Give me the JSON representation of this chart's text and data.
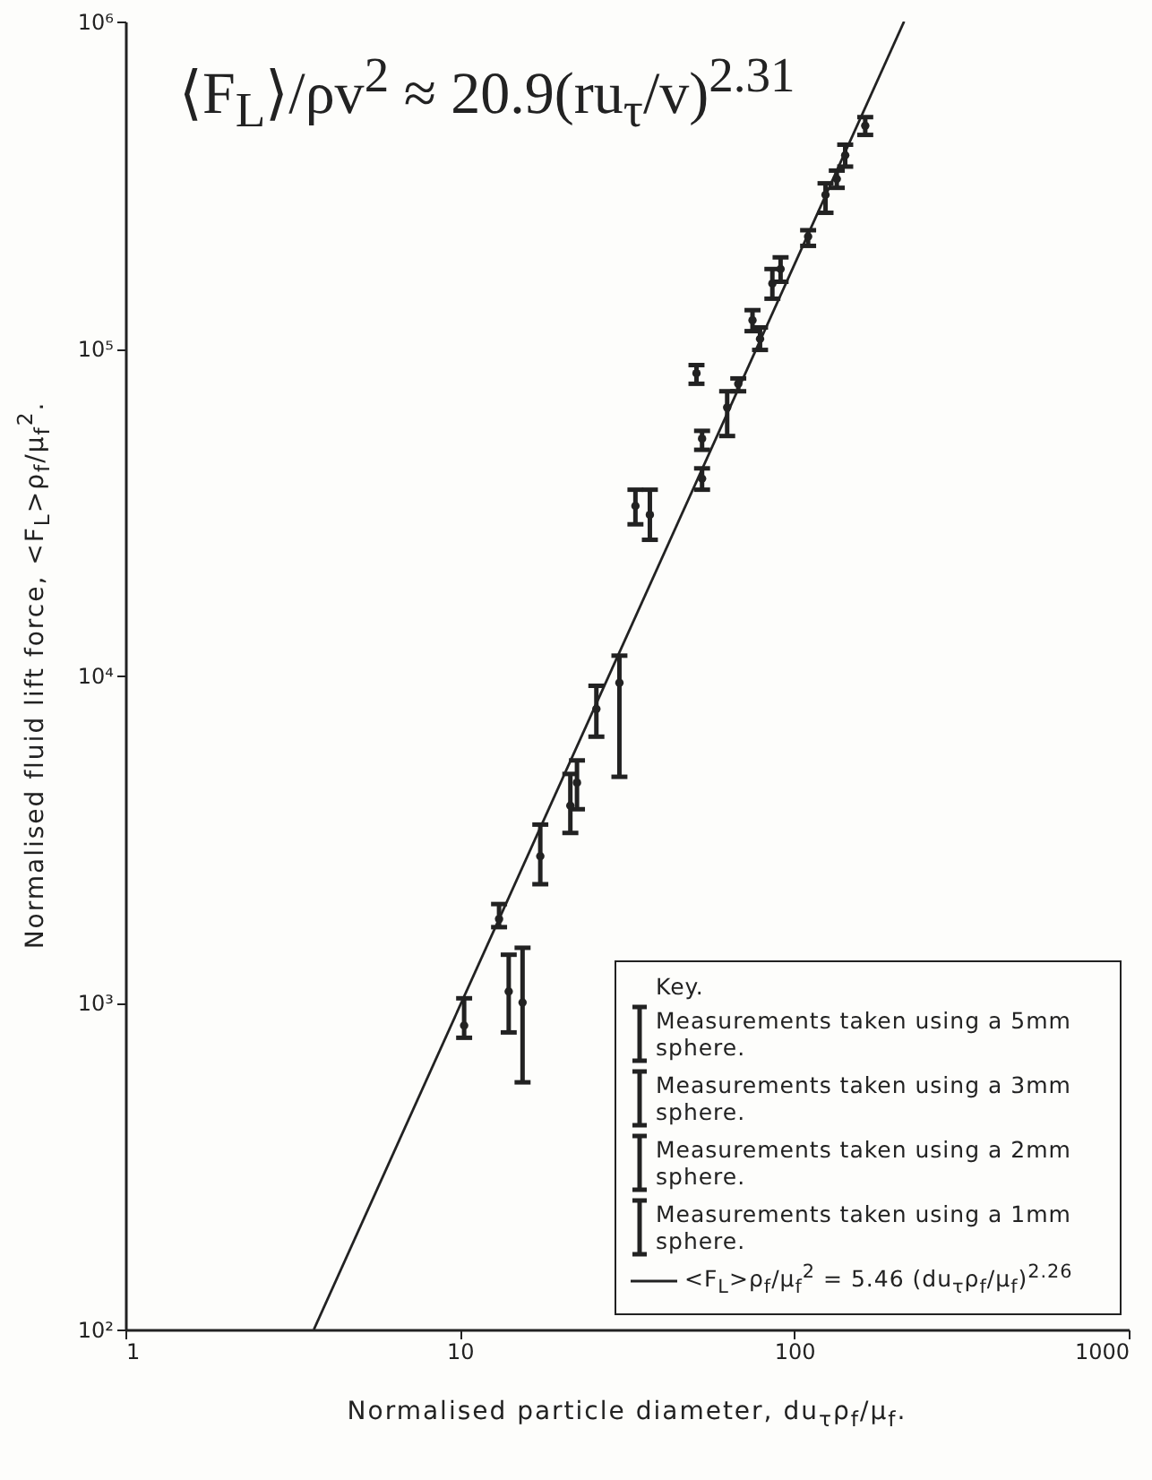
{
  "chart_data": {
    "type": "scatter",
    "xlabel": "Normalised particle diameter, du$_{τ}$ρ$_{f}$/μ$_{f}$.",
    "ylabel": "Normalised fluid lift force, <F$_{L}$>ρ$_{f}$/μ$_{f}$$^{2}$.",
    "legend_title": "Key.",
    "annotations": [
      "⟨F$_{L}$⟩/ρv$^{2}$ ≈ 20.9(ru$_{τ}$/v)$^{2.31}$"
    ],
    "log": "xy",
    "grid": false,
    "legend": "bottom right",
    "xlim": [
      1,
      1000
    ],
    "ylim": [
      100,
      1000000
    ],
    "xticks": [
      1,
      10,
      100,
      1000
    ],
    "yticks": [
      {
        "value": 100,
        "label": "10²"
      },
      {
        "value": 1000,
        "label": "10³"
      },
      {
        "value": 10000,
        "label": "10⁴"
      },
      {
        "value": 100000,
        "label": "10⁵"
      },
      {
        "value": 1000000,
        "label": "10⁶"
      }
    ],
    "series": [
      {
        "name": "Measurements taken using a 5mm sphere.",
        "color": "#222222",
        "x": [
          163,
          142,
          134,
          124,
          110,
          91,
          86,
          75,
          79
        ],
        "values": [
          480000,
          390000,
          330000,
          295000,
          220000,
          175000,
          158000,
          122000,
          107000
        ],
        "errors": [
          [
            450000,
            510000
          ],
          [
            360000,
            420000
          ],
          [
            310000,
            350000
          ],
          [
            260000,
            320000
          ],
          [
            206000,
            230000
          ],
          [
            160000,
            190000
          ],
          [
            142000,
            175000
          ],
          [
            113000,
            131000
          ],
          [
            99000,
            116000
          ]
        ]
      },
      {
        "name": "Measurements taken using a 3mm sphere.",
        "color": "#222222",
        "x": [
          51,
          68,
          63,
          53,
          53,
          33.5,
          37
        ],
        "values": [
          84000,
          78000,
          66000,
          53000,
          40000,
          33000,
          31000
        ],
        "errors": [
          [
            78000,
            89000
          ],
          [
            74000,
            81000
          ],
          [
            54000,
            74000
          ],
          [
            49000,
            56000
          ],
          [
            37000,
            43000
          ],
          [
            29000,
            37000
          ],
          [
            26000,
            37000
          ]
        ]
      },
      {
        "name": "Measurements taken using a 2mm sphere.",
        "color": "#222222",
        "x": [
          25.6,
          30,
          22.4,
          21.4,
          17.4
        ],
        "values": [
          7900,
          9500,
          4700,
          4000,
          2800
        ],
        "errors": [
          [
            6500,
            9300
          ],
          [
            4900,
            11500
          ],
          [
            3900,
            5500
          ],
          [
            3300,
            5000
          ],
          [
            2300,
            3500
          ]
        ]
      },
      {
        "name": "Measurements taken using a 1mm sphere.",
        "color": "#222222",
        "x": [
          13.1,
          14,
          15.4,
          10.3
        ],
        "values": [
          1800,
          1080,
          1000,
          850
        ],
        "errors": [
          [
            1700,
            2000
          ],
          [
            810,
            1400
          ],
          [
            570,
            1470
          ],
          [
            780,
            1030
          ]
        ]
      },
      {
        "name": "<F$_{L}$>ρ$_{f}$/μ$_{f}$$^{2}$ = 5.46 (du$_{τ}$ρ$_{f}$/μ$_{f}$)$^{2.26}$",
        "type": "line",
        "color": "#222222",
        "x": [
          3.66,
          213
        ],
        "values": [
          100,
          1000000
        ]
      }
    ]
  }
}
